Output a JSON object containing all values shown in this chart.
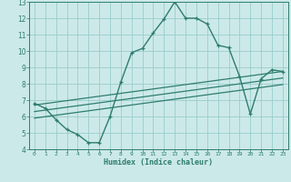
{
  "title": "",
  "xlabel": "Humidex (Indice chaleur)",
  "xlim": [
    -0.5,
    23.5
  ],
  "ylim": [
    4,
    13
  ],
  "xticks": [
    0,
    1,
    2,
    3,
    4,
    5,
    6,
    7,
    8,
    9,
    10,
    11,
    12,
    13,
    14,
    15,
    16,
    17,
    18,
    19,
    20,
    21,
    22,
    23
  ],
  "yticks": [
    4,
    5,
    6,
    7,
    8,
    9,
    10,
    11,
    12,
    13
  ],
  "background_color": "#cce9e9",
  "line_color": "#2e7d6e",
  "grid_color": "#99cccc",
  "main_line": {
    "x": [
      0,
      1,
      2,
      3,
      4,
      5,
      6,
      7,
      8,
      9,
      10,
      11,
      12,
      13,
      14,
      15,
      16,
      17,
      18,
      19,
      20,
      21,
      22,
      23
    ],
    "y": [
      6.8,
      6.5,
      5.8,
      5.2,
      4.9,
      4.4,
      4.4,
      6.0,
      8.1,
      9.9,
      10.15,
      11.1,
      11.95,
      13.0,
      12.0,
      12.0,
      11.65,
      10.35,
      10.2,
      8.45,
      6.15,
      8.3,
      8.85,
      8.75
    ]
  },
  "trend_lines": [
    {
      "x": [
        0,
        23
      ],
      "y": [
        6.7,
        8.75
      ]
    },
    {
      "x": [
        0,
        23
      ],
      "y": [
        6.3,
        8.35
      ]
    },
    {
      "x": [
        0,
        23
      ],
      "y": [
        5.9,
        7.95
      ]
    }
  ]
}
